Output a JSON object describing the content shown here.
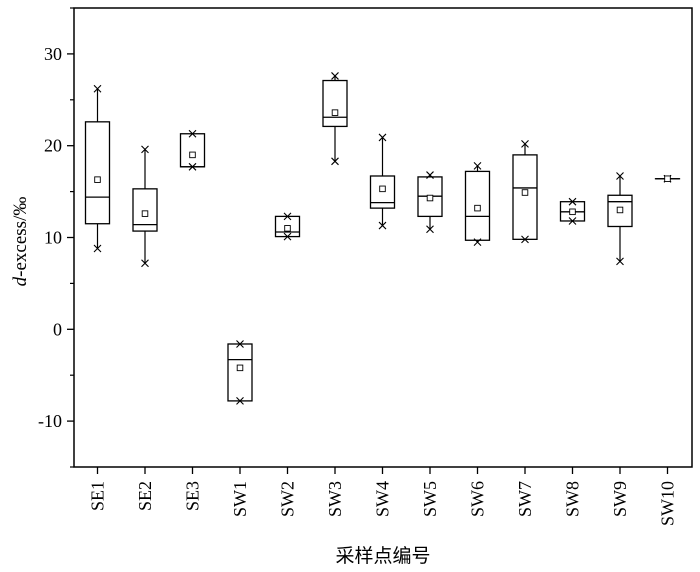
{
  "chart_data": {
    "type": "box",
    "xlabel": "采样点编号",
    "ylabel_italic": "d",
    "ylabel_rest": "-excess/‰",
    "ylim": [
      -15,
      35
    ],
    "yticks": [
      -10,
      0,
      10,
      20,
      30
    ],
    "grid": false,
    "categories": [
      "SE1",
      "SE2",
      "SE3",
      "SW1",
      "SW2",
      "SW3",
      "SW4",
      "SW5",
      "SW6",
      "SW7",
      "SW8",
      "SW9",
      "SW10"
    ],
    "boxes": [
      {
        "category": "SE1",
        "min": 8.8,
        "q1": 11.5,
        "median": 14.4,
        "q3": 22.6,
        "max": 26.2,
        "mean": 16.3
      },
      {
        "category": "SE2",
        "min": 7.2,
        "q1": 10.7,
        "median": 11.4,
        "q3": 15.3,
        "max": 19.6,
        "mean": 12.6
      },
      {
        "category": "SE3",
        "min": 17.7,
        "q1": 17.7,
        "median": 17.7,
        "q3": 21.3,
        "max": 21.3,
        "mean": 19.0
      },
      {
        "category": "SW1",
        "min": -7.8,
        "q1": -7.8,
        "median": -3.3,
        "q3": -1.6,
        "max": -1.6,
        "mean": -4.2
      },
      {
        "category": "SW2",
        "min": 10.1,
        "q1": 10.1,
        "median": 10.6,
        "q3": 12.3,
        "max": 12.3,
        "mean": 11.0
      },
      {
        "category": "SW3",
        "min": 18.3,
        "q1": 22.1,
        "median": 23.1,
        "q3": 27.1,
        "max": 27.6,
        "mean": 23.6
      },
      {
        "category": "SW4",
        "min": 11.3,
        "q1": 13.2,
        "median": 13.8,
        "q3": 16.7,
        "max": 20.9,
        "mean": 15.3
      },
      {
        "category": "SW5",
        "min": 10.9,
        "q1": 12.3,
        "median": 14.5,
        "q3": 16.6,
        "max": 16.8,
        "mean": 14.3
      },
      {
        "category": "SW6",
        "min": 9.5,
        "q1": 9.7,
        "median": 12.3,
        "q3": 17.2,
        "max": 17.8,
        "mean": 13.2
      },
      {
        "category": "SW7",
        "min": 9.8,
        "q1": 9.8,
        "median": 15.4,
        "q3": 19.0,
        "max": 20.2,
        "mean": 14.9
      },
      {
        "category": "SW8",
        "min": 11.8,
        "q1": 11.8,
        "median": 12.8,
        "q3": 13.9,
        "max": 13.9,
        "mean": 12.8
      },
      {
        "category": "SW9",
        "min": 7.4,
        "q1": 11.2,
        "median": 13.9,
        "q3": 14.6,
        "max": 16.7,
        "mean": 13.0
      },
      {
        "category": "SW10",
        "min": 16.4,
        "q1": 16.4,
        "median": 16.4,
        "q3": 16.4,
        "max": 16.4,
        "mean": 16.4
      }
    ]
  }
}
